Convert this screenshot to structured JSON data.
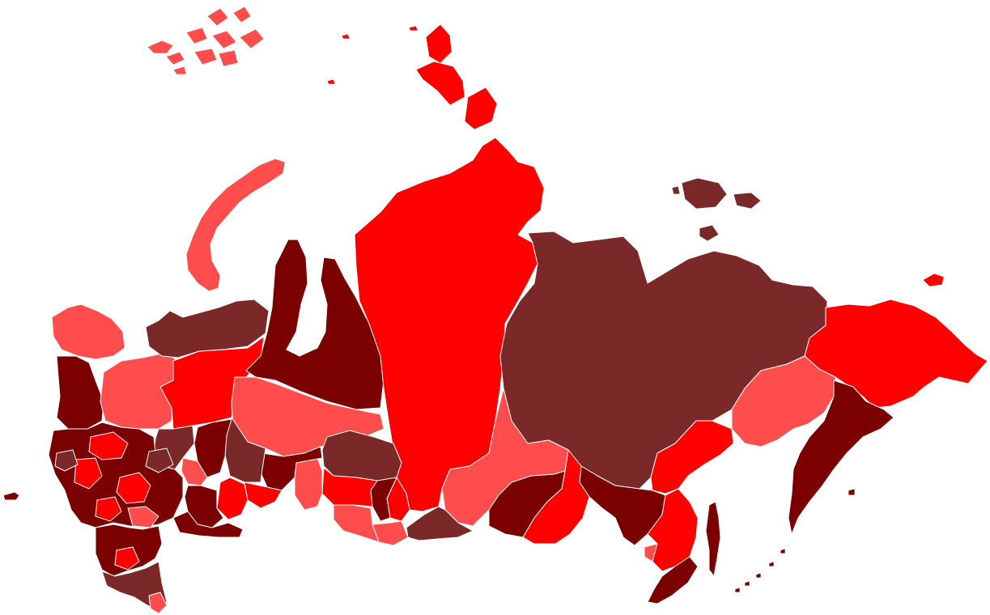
{
  "map": {
    "palette": {
      "light": "#ff4d4d",
      "bright": "#ff0000",
      "medium": "#e00000",
      "dark": "#7b0000",
      "brown": "#7a2828",
      "background": "#ffffff",
      "border": "#ffffff"
    },
    "regions": [
      {
        "id": "kaliningrad",
        "level": "dark"
      },
      {
        "id": "murmansk",
        "level": "light"
      },
      {
        "id": "karelia",
        "level": "dark"
      },
      {
        "id": "arkhangelsk",
        "level": "light"
      },
      {
        "id": "komi",
        "level": "bright"
      },
      {
        "id": "nenets",
        "level": "brown"
      },
      {
        "id": "novaya-zemlya",
        "level": "light"
      },
      {
        "id": "franz-josef-land",
        "level": "light"
      },
      {
        "id": "yamalo-nenets",
        "level": "dark"
      },
      {
        "id": "khanty-mansi",
        "level": "light"
      },
      {
        "id": "taymyr-krasnoyarsk",
        "level": "bright"
      },
      {
        "id": "severnaya-zemlya",
        "level": "bright"
      },
      {
        "id": "sakha-yakutia",
        "level": "brown"
      },
      {
        "id": "new-siberian-islands",
        "level": "brown"
      },
      {
        "id": "wrangel-island",
        "level": "bright"
      },
      {
        "id": "chukotka",
        "level": "bright"
      },
      {
        "id": "magadan",
        "level": "light"
      },
      {
        "id": "kamchatka",
        "level": "dark"
      },
      {
        "id": "khabarovsk",
        "level": "bright"
      },
      {
        "id": "amur",
        "level": "dark"
      },
      {
        "id": "jewish-ao",
        "level": "light"
      },
      {
        "id": "primorsky",
        "level": "bright"
      },
      {
        "id": "sakhalin",
        "level": "dark"
      },
      {
        "id": "zabaykalsky",
        "level": "bright"
      },
      {
        "id": "buryatia",
        "level": "dark"
      },
      {
        "id": "irkutsk",
        "level": "light"
      },
      {
        "id": "tuva",
        "level": "brown"
      },
      {
        "id": "khakassia",
        "level": "bright"
      },
      {
        "id": "altai-republic",
        "level": "light"
      },
      {
        "id": "altai-krai",
        "level": "light"
      },
      {
        "id": "kemerovo",
        "level": "dark"
      },
      {
        "id": "tomsk",
        "level": "brown"
      },
      {
        "id": "novosibirsk",
        "level": "bright"
      },
      {
        "id": "omsk",
        "level": "light"
      },
      {
        "id": "tyumen",
        "level": "dark"
      },
      {
        "id": "kurgan",
        "level": "bright"
      },
      {
        "id": "sverdlovsk",
        "level": "brown"
      },
      {
        "id": "chelyabinsk",
        "level": "bright"
      },
      {
        "id": "bashkortostan",
        "level": "dark"
      },
      {
        "id": "orenburg",
        "level": "dark"
      },
      {
        "id": "perm",
        "level": "dark"
      },
      {
        "id": "udmurtia",
        "level": "light"
      },
      {
        "id": "kirov",
        "level": "brown"
      },
      {
        "id": "central-russia",
        "level": "dark"
      },
      {
        "id": "volga",
        "level": "bright"
      },
      {
        "id": "south-russia",
        "level": "dark"
      },
      {
        "id": "north-caucasus",
        "level": "brown"
      }
    ]
  }
}
